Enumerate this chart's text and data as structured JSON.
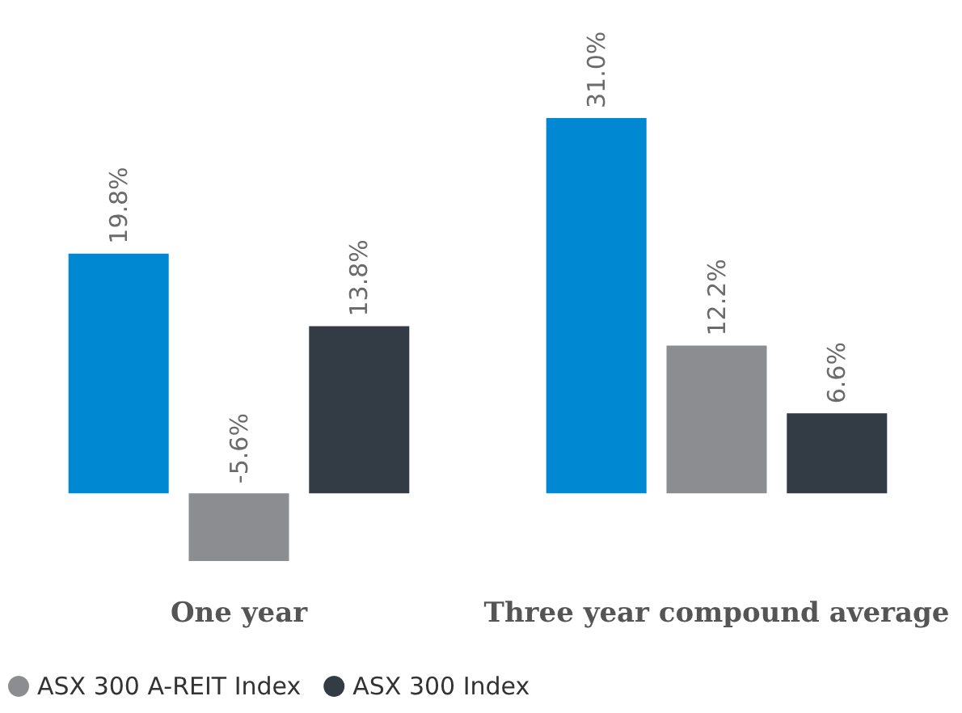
{
  "chart_data": {
    "type": "bar",
    "categories": [
      "One year",
      "Three year compound average"
    ],
    "series": [
      {
        "color": "#0089d2",
        "values": [
          19.8,
          31.0
        ],
        "value_labels": [
          "19.8%",
          "31.0%"
        ]
      },
      {
        "name": "ASX 300 A-REIT Index",
        "color": "#8b8d90",
        "values": [
          -5.6,
          12.2
        ],
        "value_labels": [
          "-5.6%",
          "12.2%"
        ]
      },
      {
        "name": "ASX 300 Index",
        "color": "#333b45",
        "values": [
          13.8,
          6.6
        ],
        "value_labels": [
          "13.8%",
          "6.6%"
        ]
      }
    ],
    "legend": "bottom left"
  }
}
